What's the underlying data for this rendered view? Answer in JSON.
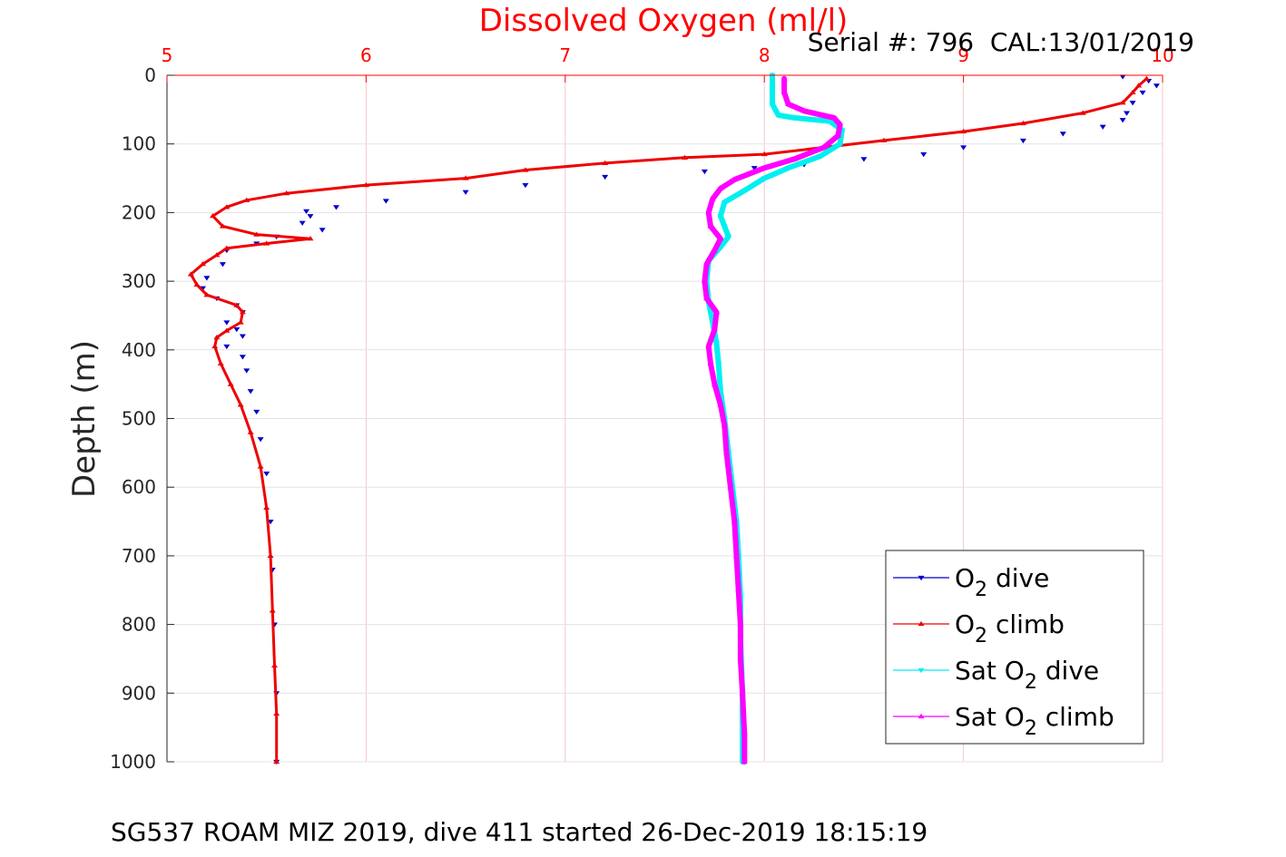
{
  "chart_data": {
    "type": "line",
    "title": "Dissolved Oxygen (ml/l)",
    "subtitle": "Serial #: 796  CAL:13/01/2019",
    "footer": "SG537 ROAM MIZ 2019, dive 411 started 26-Dec-2019 18:15:19",
    "xlabel": "",
    "ylabel": "Depth (m)",
    "xlim": [
      5,
      10
    ],
    "ylim": [
      0,
      1000
    ],
    "y_reversed": true,
    "x_axis_position": "top",
    "grid": true,
    "x_ticks": [
      "5",
      "6",
      "7",
      "8",
      "9",
      "10"
    ],
    "y_ticks": [
      "0",
      "100",
      "200",
      "300",
      "400",
      "500",
      "600",
      "700",
      "800",
      "900",
      "1000"
    ],
    "legend_position": "bottom-right",
    "colors": {
      "title": "#ff0000",
      "x_tick_labels": "#ff0000",
      "grid": "#f4c7cf",
      "o2_dive": "#0000cc",
      "o2_climb": "#ee0000",
      "sat_dive": "#00f0f0",
      "sat_climb": "#ff00ff"
    },
    "legend": [
      {
        "prefix": "O",
        "sub": "2",
        "suffix": " dive",
        "series": "o2_dive"
      },
      {
        "prefix": "O",
        "sub": "2",
        "suffix": " climb",
        "series": "o2_climb"
      },
      {
        "prefix": "Sat O",
        "sub": "2",
        "suffix": " dive",
        "series": "sat_dive"
      },
      {
        "prefix": "Sat O",
        "sub": "2",
        "suffix": " climb",
        "series": "sat_climb"
      }
    ],
    "series": [
      {
        "key": "o2_dive",
        "marker": "triangle-down",
        "style": "markers",
        "points": [
          [
            9.8,
            2
          ],
          [
            9.93,
            8
          ],
          [
            9.97,
            15
          ],
          [
            9.9,
            25
          ],
          [
            9.85,
            40
          ],
          [
            9.82,
            55
          ],
          [
            9.8,
            65
          ],
          [
            9.7,
            75
          ],
          [
            9.5,
            85
          ],
          [
            9.3,
            95
          ],
          [
            9.0,
            105
          ],
          [
            8.8,
            115
          ],
          [
            8.5,
            122
          ],
          [
            8.2,
            130
          ],
          [
            7.95,
            135
          ],
          [
            7.7,
            140
          ],
          [
            7.2,
            148
          ],
          [
            6.8,
            160
          ],
          [
            6.5,
            170
          ],
          [
            6.1,
            183
          ],
          [
            5.85,
            192
          ],
          [
            5.7,
            198
          ],
          [
            5.72,
            205
          ],
          [
            5.68,
            215
          ],
          [
            5.78,
            225
          ],
          [
            5.55,
            235
          ],
          [
            5.45,
            245
          ],
          [
            5.3,
            255
          ],
          [
            5.28,
            275
          ],
          [
            5.2,
            295
          ],
          [
            5.18,
            310
          ],
          [
            5.25,
            325
          ],
          [
            5.35,
            335
          ],
          [
            5.38,
            345
          ],
          [
            5.3,
            360
          ],
          [
            5.35,
            370
          ],
          [
            5.38,
            380
          ],
          [
            5.3,
            395
          ],
          [
            5.38,
            410
          ],
          [
            5.4,
            430
          ],
          [
            5.42,
            460
          ],
          [
            5.45,
            490
          ],
          [
            5.47,
            530
          ],
          [
            5.5,
            580
          ],
          [
            5.52,
            650
          ],
          [
            5.53,
            720
          ],
          [
            5.54,
            800
          ],
          [
            5.55,
            900
          ],
          [
            5.55,
            1000
          ]
        ]
      },
      {
        "key": "o2_climb",
        "marker": "triangle-up",
        "style": "line",
        "points": [
          [
            9.92,
            5
          ],
          [
            9.88,
            15
          ],
          [
            9.85,
            25
          ],
          [
            9.8,
            40
          ],
          [
            9.6,
            55
          ],
          [
            9.3,
            70
          ],
          [
            9.0,
            82
          ],
          [
            8.6,
            95
          ],
          [
            8.3,
            105
          ],
          [
            8.0,
            115
          ],
          [
            7.6,
            120
          ],
          [
            7.2,
            128
          ],
          [
            6.8,
            138
          ],
          [
            6.5,
            150
          ],
          [
            6.0,
            160
          ],
          [
            5.6,
            172
          ],
          [
            5.4,
            182
          ],
          [
            5.3,
            192
          ],
          [
            5.23,
            205
          ],
          [
            5.28,
            220
          ],
          [
            5.45,
            232
          ],
          [
            5.72,
            238
          ],
          [
            5.5,
            245
          ],
          [
            5.3,
            252
          ],
          [
            5.25,
            262
          ],
          [
            5.18,
            275
          ],
          [
            5.12,
            290
          ],
          [
            5.15,
            305
          ],
          [
            5.2,
            320
          ],
          [
            5.35,
            335
          ],
          [
            5.38,
            345
          ],
          [
            5.37,
            360
          ],
          [
            5.3,
            372
          ],
          [
            5.25,
            382
          ],
          [
            5.24,
            395
          ],
          [
            5.27,
            420
          ],
          [
            5.32,
            450
          ],
          [
            5.37,
            480
          ],
          [
            5.42,
            520
          ],
          [
            5.47,
            570
          ],
          [
            5.5,
            630
          ],
          [
            5.52,
            700
          ],
          [
            5.53,
            780
          ],
          [
            5.54,
            860
          ],
          [
            5.55,
            930
          ],
          [
            5.55,
            1000
          ]
        ]
      },
      {
        "key": "sat_dive",
        "marker": "triangle-down",
        "style": "line",
        "points": [
          [
            8.04,
            0
          ],
          [
            8.04,
            20
          ],
          [
            8.04,
            42
          ],
          [
            8.07,
            58
          ],
          [
            8.15,
            62
          ],
          [
            8.33,
            67
          ],
          [
            8.39,
            80
          ],
          [
            8.38,
            100
          ],
          [
            8.28,
            118
          ],
          [
            8.12,
            135
          ],
          [
            8.0,
            150
          ],
          [
            7.9,
            168
          ],
          [
            7.8,
            185
          ],
          [
            7.78,
            205
          ],
          [
            7.8,
            220
          ],
          [
            7.82,
            235
          ],
          [
            7.78,
            250
          ],
          [
            7.72,
            270
          ],
          [
            7.71,
            300
          ],
          [
            7.72,
            330
          ],
          [
            7.74,
            360
          ],
          [
            7.76,
            390
          ],
          [
            7.77,
            420
          ],
          [
            7.78,
            460
          ],
          [
            7.8,
            500
          ],
          [
            7.82,
            550
          ],
          [
            7.84,
            600
          ],
          [
            7.86,
            650
          ],
          [
            7.87,
            700
          ],
          [
            7.88,
            760
          ],
          [
            7.88,
            820
          ],
          [
            7.89,
            900
          ],
          [
            7.89,
            1000
          ]
        ]
      },
      {
        "key": "sat_climb",
        "marker": "triangle-up",
        "style": "line",
        "points": [
          [
            8.1,
            5
          ],
          [
            8.1,
            25
          ],
          [
            8.12,
            42
          ],
          [
            8.2,
            52
          ],
          [
            8.35,
            62
          ],
          [
            8.38,
            72
          ],
          [
            8.37,
            88
          ],
          [
            8.3,
            105
          ],
          [
            8.15,
            122
          ],
          [
            8.0,
            135
          ],
          [
            7.85,
            152
          ],
          [
            7.78,
            165
          ],
          [
            7.74,
            180
          ],
          [
            7.72,
            200
          ],
          [
            7.73,
            220
          ],
          [
            7.78,
            238
          ],
          [
            7.75,
            255
          ],
          [
            7.71,
            275
          ],
          [
            7.7,
            300
          ],
          [
            7.71,
            325
          ],
          [
            7.76,
            345
          ],
          [
            7.75,
            370
          ],
          [
            7.72,
            395
          ],
          [
            7.73,
            420
          ],
          [
            7.75,
            450
          ],
          [
            7.78,
            480
          ],
          [
            7.8,
            510
          ],
          [
            7.81,
            550
          ],
          [
            7.83,
            600
          ],
          [
            7.85,
            650
          ],
          [
            7.86,
            700
          ],
          [
            7.87,
            750
          ],
          [
            7.88,
            800
          ],
          [
            7.88,
            850
          ],
          [
            7.89,
            900
          ],
          [
            7.9,
            960
          ],
          [
            7.9,
            1000
          ]
        ]
      }
    ]
  }
}
